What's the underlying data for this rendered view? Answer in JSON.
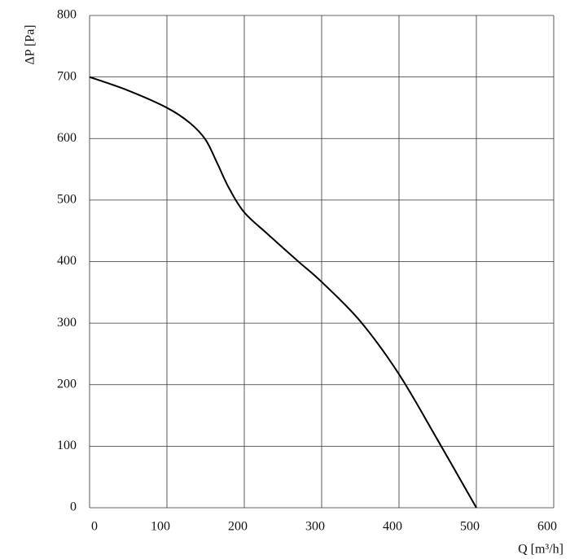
{
  "chart_data": {
    "type": "line",
    "x_label": "Q [m³/h]",
    "y_label": "ΔP [Pa]",
    "x": [
      0,
      50,
      100,
      130,
      150,
      165,
      180,
      200,
      230,
      270,
      300,
      350,
      400,
      450,
      500
    ],
    "series": [
      {
        "color": "#000000",
        "values": [
          700,
          678,
          650,
          625,
          598,
          560,
          520,
          480,
          445,
          400,
          367,
          303,
          217,
          110,
          0
        ]
      }
    ],
    "xlim": [
      0,
      600
    ],
    "xticks": [
      0,
      100,
      200,
      300,
      400,
      500,
      600
    ],
    "ylim": [
      0,
      800
    ],
    "yticks": [
      0,
      100,
      200,
      300,
      400,
      500,
      600,
      700,
      800
    ],
    "grid": true
  }
}
